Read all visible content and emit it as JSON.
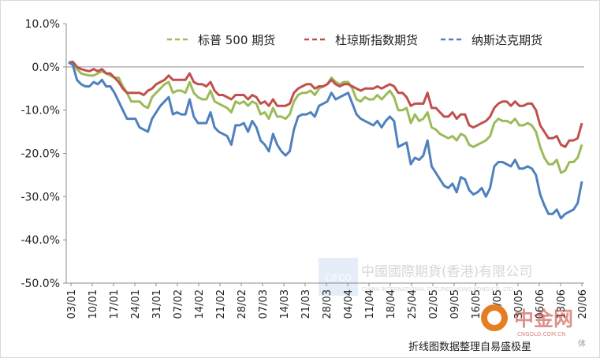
{
  "chart_data": {
    "type": "line",
    "ylim": [
      -50,
      10
    ],
    "yticks": [
      10,
      0,
      -10,
      -20,
      -30,
      -40,
      -50
    ],
    "ytick_format": "percent_one_decimal",
    "xtick_labels": [
      "03/01",
      "10/01",
      "17/01",
      "24/01",
      "31/01",
      "07/02",
      "14/02",
      "21/02",
      "28/02",
      "07/03",
      "14/03",
      "21/03",
      "28/03",
      "04/04",
      "11/04",
      "18/04",
      "25/04",
      "02/05",
      "09/05",
      "16/05",
      "23/05",
      "30/05",
      "06/06",
      "13/06",
      "20/06"
    ],
    "legend_position": "top-right",
    "grid": "zero-line-only",
    "series": [
      {
        "name": "标普 500 期货",
        "color": "#9bbb59",
        "values": [
          1.0,
          1.0,
          -0.5,
          -1.5,
          -1.8,
          -2.0,
          -2.0,
          -1.5,
          -1.0,
          -1.5,
          -2.0,
          -2.5,
          -2.5,
          -4.5,
          -6.0,
          -8.0,
          -8.0,
          -8.0,
          -9.0,
          -9.5,
          -7.0,
          -6.0,
          -5.0,
          -4.0,
          -3.5,
          -6.0,
          -5.5,
          -5.5,
          -6.0,
          -3.5,
          -6.0,
          -7.0,
          -7.5,
          -7.5,
          -5.5,
          -8.0,
          -8.5,
          -9.0,
          -9.5,
          -10.5,
          -8.0,
          -8.5,
          -8.0,
          -9.0,
          -8.0,
          -8.5,
          -11.0,
          -10.5,
          -12.0,
          -9.5,
          -11.5,
          -11.5,
          -12.0,
          -11.0,
          -8.0,
          -6.5,
          -6.0,
          -6.0,
          -5.5,
          -6.5,
          -5.0,
          -4.5,
          -4.0,
          -2.5,
          -3.5,
          -4.0,
          -3.5,
          -3.5,
          -5.0,
          -7.5,
          -8.0,
          -7.0,
          -7.5,
          -7.5,
          -6.5,
          -7.5,
          -6.5,
          -5.5,
          -7.0,
          -10.0,
          -10.0,
          -9.5,
          -13.0,
          -11.0,
          -12.5,
          -12.0,
          -10.5,
          -14.0,
          -14.5,
          -15.5,
          -16.0,
          -16.5,
          -16.0,
          -17.0,
          -15.5,
          -16.0,
          -18.0,
          -18.5,
          -18.0,
          -17.5,
          -17.0,
          -16.0,
          -13.0,
          -12.0,
          -12.5,
          -12.5,
          -13.0,
          -12.0,
          -13.5,
          -13.5,
          -13.0,
          -13.5,
          -15.0,
          -18.5,
          -21.0,
          -22.5,
          -22.5,
          -21.5,
          -24.5,
          -24.0,
          -22.0,
          -22.0,
          -21.0,
          -18.0
        ]
      },
      {
        "name": "杜琼斯指数期货",
        "color": "#c0504d",
        "values": [
          1.0,
          1.2,
          0.0,
          -0.5,
          -0.8,
          -1.0,
          -0.5,
          -1.0,
          -0.5,
          -1.5,
          -1.5,
          -2.5,
          -3.5,
          -5.0,
          -6.0,
          -6.0,
          -6.0,
          -6.0,
          -6.5,
          -5.5,
          -5.0,
          -4.0,
          -3.5,
          -3.0,
          -2.0,
          -3.0,
          -3.0,
          -3.0,
          -3.0,
          -1.5,
          -3.5,
          -4.0,
          -4.0,
          -4.5,
          -3.5,
          -5.5,
          -6.5,
          -6.5,
          -7.0,
          -7.5,
          -6.5,
          -6.5,
          -6.5,
          -7.5,
          -6.5,
          -7.0,
          -8.5,
          -8.0,
          -9.0,
          -7.5,
          -9.0,
          -9.0,
          -9.0,
          -8.5,
          -6.0,
          -5.0,
          -4.5,
          -4.0,
          -4.0,
          -5.0,
          -4.5,
          -4.5,
          -4.0,
          -3.0,
          -4.0,
          -4.5,
          -4.0,
          -4.0,
          -4.5,
          -5.0,
          -5.5,
          -5.0,
          -5.0,
          -5.0,
          -4.5,
          -5.0,
          -4.5,
          -4.0,
          -4.5,
          -6.0,
          -6.0,
          -7.0,
          -9.0,
          -8.5,
          -8.5,
          -8.5,
          -6.0,
          -9.5,
          -9.5,
          -10.5,
          -11.5,
          -11.5,
          -10.5,
          -12.0,
          -11.0,
          -11.0,
          -13.5,
          -14.0,
          -13.5,
          -13.0,
          -12.5,
          -11.5,
          -9.5,
          -8.5,
          -8.0,
          -8.0,
          -9.0,
          -8.0,
          -9.0,
          -9.0,
          -8.5,
          -8.5,
          -10.0,
          -13.5,
          -15.0,
          -16.5,
          -16.5,
          -16.0,
          -18.0,
          -18.5,
          -17.0,
          -17.0,
          -16.5,
          -13.0
        ]
      },
      {
        "name": "纳斯达克期货",
        "color": "#4f81bd",
        "values": [
          1.0,
          0.5,
          -3.0,
          -4.0,
          -4.5,
          -4.5,
          -3.5,
          -4.0,
          -3.0,
          -4.5,
          -4.5,
          -6.0,
          -8.0,
          -10.0,
          -12.0,
          -12.0,
          -12.0,
          -14.0,
          -14.5,
          -15.0,
          -12.0,
          -10.5,
          -9.0,
          -8.0,
          -7.0,
          -11.0,
          -10.5,
          -11.0,
          -11.0,
          -7.5,
          -11.5,
          -13.0,
          -13.0,
          -13.0,
          -10.5,
          -14.0,
          -15.0,
          -15.5,
          -16.0,
          -18.0,
          -13.5,
          -13.5,
          -13.0,
          -15.0,
          -12.5,
          -14.0,
          -17.0,
          -18.0,
          -19.5,
          -15.5,
          -18.0,
          -19.5,
          -20.5,
          -19.5,
          -14.5,
          -11.5,
          -11.0,
          -11.0,
          -10.5,
          -11.5,
          -9.0,
          -8.5,
          -8.0,
          -6.0,
          -7.5,
          -7.0,
          -6.5,
          -6.0,
          -8.5,
          -11.0,
          -12.0,
          -12.5,
          -13.0,
          -13.5,
          -12.5,
          -14.0,
          -12.5,
          -11.5,
          -12.5,
          -18.5,
          -18.0,
          -17.5,
          -22.5,
          -21.0,
          -21.5,
          -20.5,
          -17.0,
          -23.0,
          -24.5,
          -26.0,
          -27.5,
          -28.0,
          -27.0,
          -29.0,
          -25.5,
          -26.0,
          -28.5,
          -29.5,
          -29.0,
          -28.0,
          -30.0,
          -28.0,
          -23.0,
          -22.0,
          -22.0,
          -22.5,
          -23.0,
          -21.5,
          -23.5,
          -23.5,
          -23.0,
          -23.5,
          -25.0,
          -29.5,
          -32.0,
          -34.0,
          -34.0,
          -33.0,
          -35.0,
          -34.0,
          -33.5,
          -33.0,
          -31.5,
          -26.5
        ]
      }
    ]
  },
  "watermark": {
    "logo_text": "CIFCO",
    "company_cn": "中國國際期貨(香港)有限公司",
    "company_en": "CHINA INTERNATIONAL FUTURES(HONG KONG)CO.,LTD."
  },
  "site_logo": {
    "text": "中金网",
    "domain": "CNGOLD.COM.CN",
    "extra": "体"
  },
  "caption": "折线图数据整理自易盛极星"
}
